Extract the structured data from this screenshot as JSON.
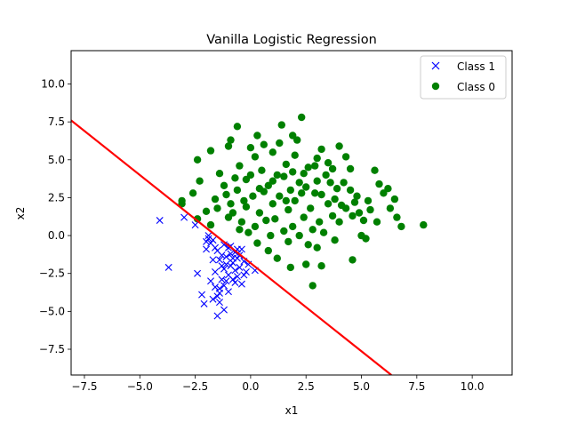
{
  "chart_data": {
    "type": "scatter",
    "title": "Vanilla Logistic Regression",
    "xlabel": "x1",
    "ylabel": "x2",
    "xlim": [
      -8.1,
      11.8
    ],
    "ylim": [
      -9.2,
      12.2
    ],
    "xticks": [
      -7.5,
      -5.0,
      -2.5,
      0.0,
      2.5,
      5.0,
      7.5,
      10.0
    ],
    "xtick_labels": [
      "−7.5",
      "−5.0",
      "−2.5",
      "0.0",
      "2.5",
      "5.0",
      "7.5",
      "10.0"
    ],
    "yticks": [
      -7.5,
      -5.0,
      -2.5,
      0.0,
      2.5,
      5.0,
      7.5,
      10.0
    ],
    "ytick_labels": [
      "−7.5",
      "−5.0",
      "−2.5",
      "0.0",
      "2.5",
      "5.0",
      "7.5",
      "10.0"
    ],
    "grid": false,
    "legend_position": "top-right",
    "series": [
      {
        "name": "Class 1",
        "marker": "x",
        "color": "#0000ff",
        "points": [
          [
            -4.1,
            1.0
          ],
          [
            -3.7,
            -2.1
          ],
          [
            -3.0,
            1.2
          ],
          [
            -2.5,
            0.7
          ],
          [
            -2.4,
            -2.5
          ],
          [
            -2.2,
            -3.9
          ],
          [
            -2.1,
            -4.5
          ],
          [
            -2.0,
            -0.4
          ],
          [
            -1.9,
            0.0
          ],
          [
            -1.8,
            -0.5
          ],
          [
            -1.7,
            -0.3
          ],
          [
            -1.6,
            -3.4
          ],
          [
            -1.5,
            -5.3
          ],
          [
            -1.4,
            -3.8
          ],
          [
            -1.3,
            -2.0
          ],
          [
            -1.2,
            -4.9
          ],
          [
            -1.1,
            -3.0
          ],
          [
            -1.0,
            -0.8
          ],
          [
            -0.9,
            -1.2
          ],
          [
            -0.8,
            -1.8
          ],
          [
            -0.7,
            -2.3
          ],
          [
            -0.6,
            -1.5
          ],
          [
            -0.5,
            -2.1
          ],
          [
            -0.4,
            -3.2
          ],
          [
            -0.3,
            -1.7
          ],
          [
            -0.2,
            -2.4
          ],
          [
            -0.1,
            -1.9
          ],
          [
            0.2,
            -2.3
          ],
          [
            -1.6,
            -2.4
          ],
          [
            -1.4,
            -1.6
          ],
          [
            -1.3,
            -2.9
          ],
          [
            -1.2,
            -0.6
          ],
          [
            -1.1,
            -1.4
          ],
          [
            -1.0,
            -2.6
          ],
          [
            -0.9,
            -0.7
          ],
          [
            -0.8,
            -2.9
          ],
          [
            -0.7,
            -1.1
          ],
          [
            -0.6,
            -2.7
          ],
          [
            -0.5,
            -1.3
          ],
          [
            -1.5,
            -1.0
          ],
          [
            -1.7,
            -4.2
          ],
          [
            -1.8,
            -3.0
          ],
          [
            -1.4,
            -3.5
          ],
          [
            -1.2,
            -2.2
          ],
          [
            -1.0,
            -3.7
          ],
          [
            -0.9,
            -2.0
          ],
          [
            -2.0,
            -0.9
          ],
          [
            -1.9,
            -0.2
          ],
          [
            -1.5,
            -4.0
          ],
          [
            -0.4,
            -0.9
          ],
          [
            -0.6,
            -0.9
          ],
          [
            -1.1,
            -1.9
          ],
          [
            -1.3,
            -1.3
          ],
          [
            -1.6,
            -0.8
          ],
          [
            -0.8,
            -1.5
          ],
          [
            -0.3,
            -2.6
          ],
          [
            -1.7,
            -1.6
          ],
          [
            -1.2,
            -3.3
          ],
          [
            -1.4,
            -4.4
          ],
          [
            -0.7,
            -3.1
          ]
        ]
      },
      {
        "name": "Class 0",
        "marker": "o",
        "color": "#008000",
        "points": [
          [
            -0.6,
            7.2
          ],
          [
            1.4,
            7.3
          ],
          [
            2.3,
            7.8
          ],
          [
            -1.8,
            5.6
          ],
          [
            -2.4,
            5.0
          ],
          [
            -1.0,
            5.9
          ],
          [
            0.6,
            6.0
          ],
          [
            4.0,
            5.9
          ],
          [
            -2.3,
            3.6
          ],
          [
            -3.1,
            2.3
          ],
          [
            -3.1,
            2.1
          ],
          [
            6.2,
            3.1
          ],
          [
            7.8,
            0.7
          ],
          [
            6.8,
            0.6
          ],
          [
            5.1,
            1.0
          ],
          [
            5.0,
            0.0
          ],
          [
            1.8,
            -2.1
          ],
          [
            2.5,
            -1.9
          ],
          [
            2.8,
            -3.3
          ],
          [
            3.2,
            -2.0
          ],
          [
            4.6,
            -1.6
          ],
          [
            5.2,
            -0.2
          ],
          [
            -2.4,
            1.1
          ],
          [
            -1.8,
            0.7
          ],
          [
            1.2,
            -1.5
          ],
          [
            0.8,
            -1.0
          ],
          [
            3.5,
            4.8
          ],
          [
            4.5,
            4.4
          ],
          [
            5.6,
            4.3
          ],
          [
            6.0,
            2.8
          ],
          [
            6.3,
            1.8
          ],
          [
            5.7,
            0.9
          ],
          [
            -0.5,
            4.6
          ],
          [
            0.2,
            5.2
          ],
          [
            1.0,
            5.5
          ],
          [
            2.0,
            5.3
          ],
          [
            3.0,
            5.1
          ],
          [
            4.2,
            3.5
          ],
          [
            4.8,
            2.6
          ],
          [
            5.4,
            1.7
          ],
          [
            -1.2,
            3.3
          ],
          [
            -1.6,
            2.4
          ],
          [
            -0.8,
            1.5
          ],
          [
            -1.4,
            4.1
          ],
          [
            -0.2,
            3.7
          ],
          [
            0.5,
            4.3
          ],
          [
            1.6,
            4.7
          ],
          [
            2.6,
            4.5
          ],
          [
            3.4,
            4.0
          ],
          [
            3.9,
            3.1
          ],
          [
            4.3,
            1.8
          ],
          [
            4.0,
            0.9
          ],
          [
            3.3,
            0.2
          ],
          [
            2.6,
            -0.6
          ],
          [
            1.7,
            -0.4
          ],
          [
            0.9,
            0.0
          ],
          [
            0.2,
            0.6
          ],
          [
            -0.4,
            0.9
          ],
          [
            -0.9,
            2.1
          ],
          [
            -0.6,
            3.0
          ],
          [
            0.1,
            2.6
          ],
          [
            0.8,
            3.3
          ],
          [
            1.5,
            3.9
          ],
          [
            2.2,
            3.5
          ],
          [
            2.9,
            2.8
          ],
          [
            3.5,
            2.1
          ],
          [
            3.7,
            1.3
          ],
          [
            3.1,
            0.9
          ],
          [
            2.4,
            1.2
          ],
          [
            1.7,
            1.7
          ],
          [
            1.0,
            2.1
          ],
          [
            0.4,
            1.5
          ],
          [
            -0.2,
            1.9
          ],
          [
            0.6,
            2.9
          ],
          [
            1.3,
            2.6
          ],
          [
            2.0,
            2.3
          ],
          [
            2.7,
            1.8
          ],
          [
            3.2,
            2.7
          ],
          [
            2.5,
            3.2
          ],
          [
            1.8,
            3.0
          ],
          [
            1.1,
            1.1
          ],
          [
            1.9,
            0.6
          ],
          [
            2.8,
            0.4
          ],
          [
            3.8,
            2.4
          ],
          [
            4.5,
            3.0
          ],
          [
            -0.3,
            2.3
          ],
          [
            0.0,
            4.0
          ],
          [
            1.2,
            4.0
          ],
          [
            2.4,
            4.1
          ],
          [
            3.6,
            3.5
          ],
          [
            4.7,
            2.2
          ],
          [
            4.6,
            1.3
          ],
          [
            0.3,
            -0.5
          ],
          [
            -0.1,
            0.2
          ],
          [
            1.5,
            0.3
          ],
          [
            2.2,
            0.0
          ],
          [
            3.0,
            -0.8
          ],
          [
            3.8,
            -0.3
          ],
          [
            -1.0,
            1.2
          ],
          [
            -0.5,
            0.4
          ],
          [
            0.7,
            1.0
          ],
          [
            1.6,
            2.3
          ],
          [
            2.3,
            2.8
          ],
          [
            3.0,
            3.6
          ],
          [
            3.7,
            4.4
          ],
          [
            2.9,
            4.6
          ],
          [
            1.9,
            4.2
          ],
          [
            1.0,
            3.6
          ],
          [
            0.4,
            3.1
          ],
          [
            -0.7,
            3.8
          ],
          [
            -1.1,
            2.7
          ],
          [
            -1.5,
            1.8
          ],
          [
            4.1,
            2.0
          ],
          [
            4.9,
            1.5
          ],
          [
            5.3,
            2.3
          ],
          [
            5.8,
            3.4
          ],
          [
            6.5,
            2.4
          ],
          [
            6.6,
            1.2
          ],
          [
            -2.0,
            1.6
          ],
          [
            -2.6,
            2.8
          ],
          [
            0.0,
            5.8
          ],
          [
            1.3,
            6.1
          ],
          [
            2.1,
            6.3
          ],
          [
            3.2,
            5.7
          ],
          [
            4.3,
            5.2
          ],
          [
            -0.9,
            6.3
          ],
          [
            0.3,
            6.6
          ],
          [
            1.9,
            6.6
          ]
        ]
      }
    ],
    "boundary_line": {
      "color": "#ff0000",
      "x": [
        -8.1,
        6.35
      ],
      "y": [
        7.6,
        -9.2
      ]
    }
  }
}
